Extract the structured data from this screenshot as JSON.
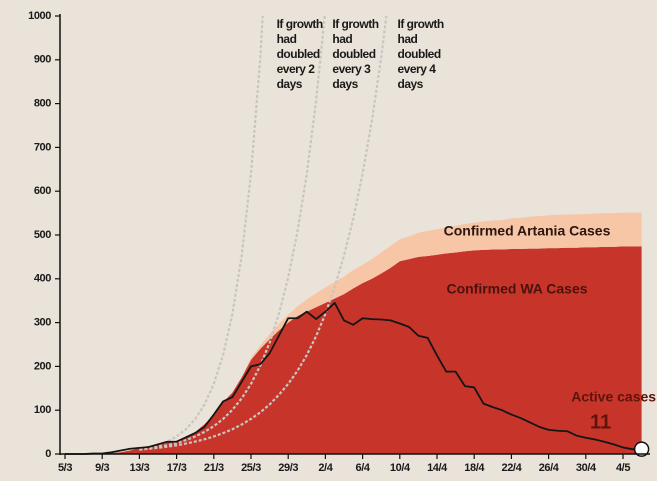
{
  "chart_data": {
    "type": "area",
    "categories": [
      "5/3",
      null,
      null,
      null,
      "9/3",
      null,
      null,
      null,
      "13/3",
      null,
      null,
      null,
      "17/3",
      null,
      null,
      null,
      "21/3",
      null,
      null,
      null,
      "25/3",
      null,
      null,
      null,
      "29/3",
      null,
      null,
      null,
      "2/4",
      null,
      null,
      null,
      "6/4",
      null,
      null,
      null,
      "10/4",
      null,
      null,
      null,
      "14/4",
      null,
      null,
      null,
      "18/4",
      null,
      null,
      null,
      "22/4",
      null,
      null,
      null,
      "26/4",
      null,
      null,
      null,
      "30/4",
      null,
      null,
      null,
      "4/5",
      null,
      null
    ],
    "ylim": [
      0,
      1000
    ],
    "yticks": [
      0,
      100,
      200,
      300,
      400,
      500,
      600,
      700,
      800,
      900,
      1000
    ],
    "series": [
      {
        "name": "Confirmed WA Cases",
        "color": "#c7352a",
        "stacked": true,
        "values": [
          0,
          0,
          0,
          1,
          1,
          2,
          4,
          8,
          14,
          18,
          22,
          26,
          30,
          38,
          50,
          68,
          90,
          118,
          140,
          175,
          215,
          240,
          262,
          282,
          300,
          315,
          325,
          335,
          345,
          355,
          365,
          378,
          390,
          400,
          412,
          425,
          440,
          445,
          450,
          452,
          455,
          458,
          460,
          463,
          465,
          466,
          467,
          467,
          468,
          468,
          469,
          469,
          470,
          470,
          471,
          471,
          472,
          472,
          473,
          473,
          474,
          474,
          474
        ]
      },
      {
        "name": "Confirmed Artania Cases",
        "color": "#f6c6a6",
        "stacked": true,
        "values": [
          0,
          0,
          0,
          0,
          0,
          0,
          0,
          0,
          0,
          0,
          0,
          0,
          0,
          0,
          0,
          0,
          0,
          0,
          0,
          0,
          5,
          8,
          12,
          15,
          18,
          22,
          28,
          32,
          35,
          38,
          40,
          42,
          42,
          45,
          48,
          50,
          50,
          52,
          55,
          57,
          58,
          60,
          61,
          62,
          63,
          65,
          66,
          67,
          70,
          71,
          73,
          74,
          75,
          76,
          76,
          76,
          76,
          77,
          77,
          77,
          77,
          77,
          77
        ]
      },
      {
        "name": "Active cases:",
        "color": "#151515",
        "style": "line",
        "values": [
          0,
          0,
          0,
          1,
          1,
          4,
          8,
          12,
          14,
          16,
          22,
          28,
          28,
          38,
          48,
          62,
          90,
          120,
          130,
          165,
          200,
          205,
          230,
          270,
          310,
          310,
          325,
          308,
          325,
          345,
          305,
          295,
          310,
          308,
          307,
          305,
          298,
          290,
          270,
          265,
          225,
          188,
          188,
          155,
          152,
          115,
          107,
          100,
          90,
          82,
          72,
          62,
          55,
          53,
          52,
          42,
          37,
          33,
          28,
          22,
          15,
          11,
          11
        ]
      },
      {
        "name": "If growth had doubled every 2 days",
        "color": "#c9c5bf",
        "style": "dashed",
        "values": [
          null,
          null,
          null,
          null,
          null,
          null,
          null,
          null,
          10,
          14.1,
          20,
          28.3,
          40,
          56.6,
          80,
          113,
          160,
          226,
          320,
          453,
          640,
          905,
          1280,
          null,
          null,
          null,
          null,
          null,
          null,
          null,
          null,
          null,
          null,
          null,
          null,
          null,
          null,
          null,
          null,
          null,
          null,
          null,
          null,
          null,
          null,
          null,
          null,
          null,
          null,
          null,
          null,
          null,
          null,
          null,
          null,
          null,
          null,
          null,
          null,
          null,
          null,
          null,
          null
        ]
      },
      {
        "name": "If growth had doubled every 3 days",
        "color": "#c9c5bf",
        "style": "dashed",
        "values": [
          null,
          null,
          null,
          null,
          null,
          null,
          null,
          null,
          10,
          12.6,
          15.9,
          20,
          25.2,
          31.7,
          40,
          50.4,
          63.5,
          80,
          101,
          127,
          160,
          202,
          254,
          320,
          403,
          508,
          640,
          806,
          1016,
          null,
          null,
          null,
          null,
          null,
          null,
          null,
          null,
          null,
          null,
          null,
          null,
          null,
          null,
          null,
          null,
          null,
          null,
          null,
          null,
          null,
          null,
          null,
          null,
          null,
          null,
          null,
          null,
          null,
          null,
          null,
          null,
          null,
          null
        ]
      },
      {
        "name": "If growth had doubled every 4 days",
        "color": "#c9c5bf",
        "style": "dashed",
        "values": [
          null,
          null,
          null,
          null,
          null,
          null,
          null,
          null,
          10,
          11.9,
          14.1,
          16.8,
          20,
          23.8,
          28.3,
          33.6,
          40,
          47.6,
          56.6,
          67.3,
          80,
          95.1,
          113,
          135,
          160,
          190,
          226,
          269,
          320,
          381,
          453,
          538,
          640,
          761,
          905,
          1076,
          null,
          null,
          null,
          null,
          null,
          null,
          null,
          null,
          null,
          null,
          null,
          null,
          null,
          null,
          null,
          null,
          null,
          null,
          null,
          null,
          null,
          null,
          null,
          null,
          null,
          null,
          null
        ]
      }
    ]
  }
}
